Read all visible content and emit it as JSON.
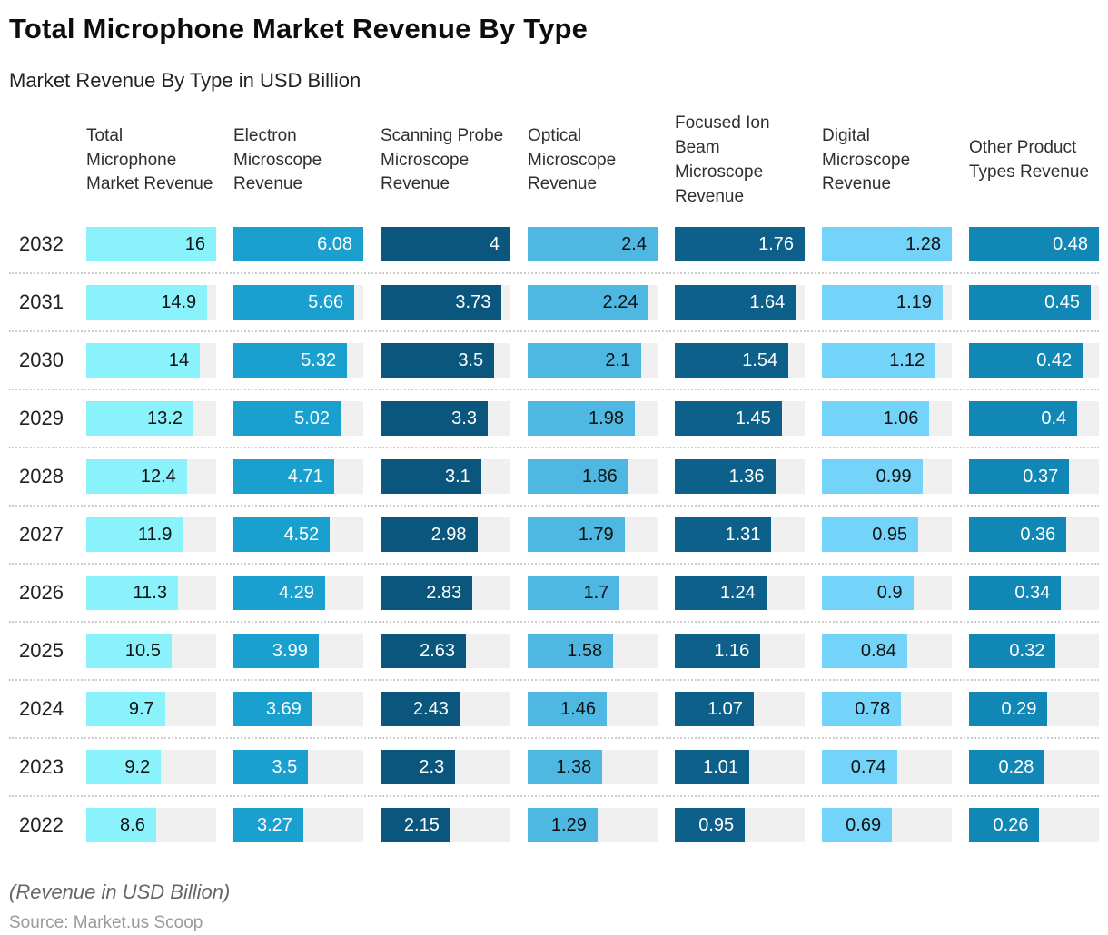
{
  "title": "Total Microphone Market Revenue By Type",
  "subtitle": "Market Revenue By Type in USD Billion",
  "footnote": "(Revenue in USD Billion)",
  "source": "Source: Market.us Scoop",
  "chart_data": {
    "type": "bar",
    "orientation": "horizontal",
    "unit": "USD Billion",
    "title": "Total Microphone Market Revenue By Type",
    "subtitle": "Market Revenue By Type in USD Billion",
    "layout_hints": {
      "value_labels": "inside-bar-right",
      "bars_normalized_per_column_max": true,
      "track_background": "#f0f0f0",
      "row_separator": "dotted"
    },
    "categories": [
      "2032",
      "2031",
      "2030",
      "2029",
      "2028",
      "2027",
      "2026",
      "2025",
      "2024",
      "2023",
      "2022"
    ],
    "series": [
      {
        "name": "Total Microphone Market Revenue",
        "color": "#8af2fa",
        "text_color": "#111111",
        "max": 16,
        "values": [
          16,
          14.9,
          14,
          13.2,
          12.4,
          11.9,
          11.3,
          10.5,
          9.7,
          9.2,
          8.6
        ]
      },
      {
        "name": "Electron Microscope Revenue",
        "color": "#1aa0ce",
        "text_color": "#ffffff",
        "max": 6.08,
        "values": [
          6.08,
          5.66,
          5.32,
          5.02,
          4.71,
          4.52,
          4.29,
          3.99,
          3.69,
          3.5,
          3.27
        ]
      },
      {
        "name": "Scanning Probe Microscope Revenue",
        "color": "#0a567c",
        "text_color": "#ffffff",
        "max": 4,
        "values": [
          4,
          3.73,
          3.5,
          3.3,
          3.1,
          2.98,
          2.83,
          2.63,
          2.43,
          2.3,
          2.15
        ]
      },
      {
        "name": "Optical Microscope Revenue",
        "color": "#4fb8e2",
        "text_color": "#111111",
        "max": 2.4,
        "values": [
          2.4,
          2.24,
          2.1,
          1.98,
          1.86,
          1.79,
          1.7,
          1.58,
          1.46,
          1.38,
          1.29
        ]
      },
      {
        "name": "Focused Ion Beam Microscope Revenue",
        "color": "#0d6089",
        "text_color": "#ffffff",
        "max": 1.76,
        "values": [
          1.76,
          1.64,
          1.54,
          1.45,
          1.36,
          1.31,
          1.24,
          1.16,
          1.07,
          1.01,
          0.95
        ]
      },
      {
        "name": "Digital Microscope Revenue",
        "color": "#74d3f8",
        "text_color": "#111111",
        "max": 1.28,
        "values": [
          1.28,
          1.19,
          1.12,
          1.06,
          0.99,
          0.95,
          0.9,
          0.84,
          0.78,
          0.74,
          0.69
        ]
      },
      {
        "name": "Other Product Types Revenue",
        "color": "#1187b5",
        "text_color": "#ffffff",
        "max": 0.48,
        "values": [
          0.48,
          0.45,
          0.42,
          0.4,
          0.37,
          0.36,
          0.34,
          0.32,
          0.29,
          0.28,
          0.26
        ]
      }
    ]
  }
}
